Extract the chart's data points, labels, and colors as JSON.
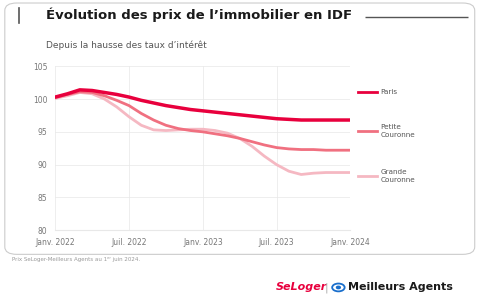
{
  "title": "Évolution des prix de l’immobilier en IDF",
  "subtitle": "Depuis la hausse des taux d’intérêt",
  "footnote": "Prix SeLoger-Meilleurs Agents au 1ᵉʳ juin 2024.",
  "x_labels": [
    "Janv. 2022",
    "Juil. 2022",
    "Janv. 2023",
    "Juil. 2023",
    "Janv. 2024"
  ],
  "x_ticks": [
    0,
    6,
    12,
    18,
    24
  ],
  "ylim": [
    80,
    105
  ],
  "yticks": [
    80,
    85,
    90,
    95,
    100,
    105
  ],
  "paris": [
    100.3,
    100.8,
    101.4,
    101.3,
    101.0,
    100.7,
    100.3,
    99.8,
    99.4,
    99.0,
    98.7,
    98.4,
    98.2,
    98.0,
    97.8,
    97.6,
    97.4,
    97.2,
    97.0,
    96.9,
    96.8,
    96.8,
    96.8,
    96.8,
    96.8
  ],
  "petite_couronne": [
    100.2,
    100.7,
    101.1,
    101.0,
    100.5,
    99.8,
    99.0,
    97.8,
    96.8,
    96.0,
    95.5,
    95.2,
    95.0,
    94.7,
    94.4,
    94.0,
    93.5,
    93.0,
    92.6,
    92.4,
    92.3,
    92.3,
    92.2,
    92.2,
    92.2
  ],
  "grande_couronne": [
    100.1,
    100.5,
    101.0,
    100.8,
    100.0,
    98.8,
    97.3,
    96.0,
    95.3,
    95.2,
    95.3,
    95.4,
    95.4,
    95.2,
    94.8,
    94.0,
    92.8,
    91.3,
    90.0,
    89.0,
    88.5,
    88.7,
    88.8,
    88.8,
    88.8
  ],
  "color_paris": "#e8003d",
  "color_petite": "#f07080",
  "color_grande": "#f5b8c2",
  "bg_color": "#ffffff",
  "grid_color": "#e8e8e8",
  "seloger_color": "#e8003d",
  "meilleurs_color": "#1a1a1a",
  "icon_color": "#1a6fcc",
  "border_color": "#cccccc"
}
